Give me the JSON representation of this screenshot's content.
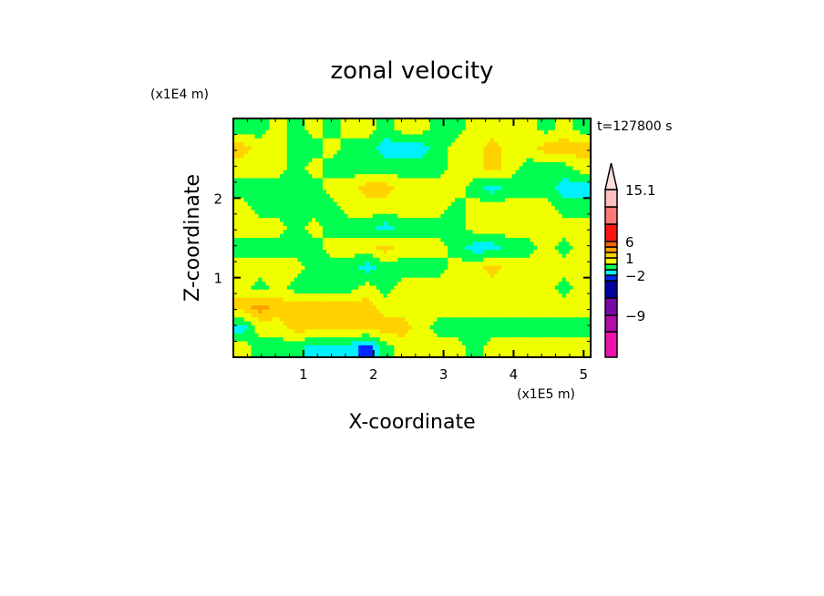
{
  "chart_data": {
    "type": "heatmap",
    "title": "zonal velocity",
    "xlabel": "X-coordinate",
    "ylabel": "Z-coordinate",
    "x_scale_label": "(x1E5 m)",
    "y_scale_label": "(x1E4 m)",
    "time_label": "t=127800 s",
    "xlim": [
      0,
      5.1
    ],
    "ylim": [
      0,
      3.0
    ],
    "x_ticks": [
      1,
      2,
      3,
      4,
      5
    ],
    "x_tick_labels": [
      "1",
      "2",
      "3",
      "4",
      "5"
    ],
    "y_ticks": [
      1,
      2
    ],
    "y_tick_labels": [
      "1",
      "2"
    ],
    "minor_tick_step": 0.2,
    "colorbar": {
      "levels": [
        -15,
        -12,
        -9,
        -6,
        -3,
        -2,
        -1,
        0,
        1,
        2,
        3,
        6,
        9,
        12,
        15.1
      ],
      "colors": [
        "#ec12aa",
        "#b40aa8",
        "#7808a8",
        "#0000a0",
        "#0028ff",
        "#00f0ff",
        "#00ff50",
        "#f0ff00",
        "#ffd200",
        "#ffa000",
        "#ff6400",
        "#ff1414",
        "#ff7878",
        "#ffc0c0"
      ],
      "over_color": "#ffdcdc",
      "labels": [
        {
          "value": 15.1,
          "text": "15.1"
        },
        {
          "value": 6,
          "text": "6"
        },
        {
          "value": 1,
          "text": "1"
        },
        {
          "value": -2,
          "text": "-2"
        },
        {
          "value": -9,
          "text": "-9"
        }
      ]
    },
    "grid_note": "approximate field, rows from top (z=3) to bottom (z=0), cols from x=0 to x=5.1",
    "values": [
      [
        -0.5,
        -0.5,
        0.5,
        -0.5,
        0.5,
        -0.5,
        0.5,
        0.5,
        -0.5,
        0.5,
        0.5,
        -0.5,
        -0.5,
        0.5,
        0.5,
        0.5,
        0.5,
        -0.5,
        0.5,
        -0.5
      ],
      [
        1.5,
        0.5,
        0.5,
        -0.5,
        -0.5,
        0.5,
        -0.5,
        -0.5,
        -1.5,
        -1.5,
        -1.5,
        -0.5,
        0.5,
        0.5,
        1.5,
        0.5,
        0.5,
        1.5,
        1.5,
        1.5
      ],
      [
        0.5,
        0.5,
        0.5,
        -0.5,
        0.5,
        -0.5,
        -0.5,
        -0.5,
        -0.5,
        -0.5,
        -0.5,
        -0.5,
        0.5,
        0.5,
        1.5,
        0.5,
        -0.5,
        -0.5,
        -0.5,
        0.5
      ],
      [
        -0.5,
        -0.5,
        -0.5,
        -0.5,
        -0.5,
        0.5,
        0.5,
        1.5,
        1.5,
        0.5,
        0.5,
        0.5,
        0.5,
        -0.5,
        -1.5,
        -0.5,
        -0.5,
        -0.5,
        -1.5,
        -1.5
      ],
      [
        0.5,
        -0.5,
        -0.5,
        -0.5,
        -0.5,
        -0.5,
        0.5,
        0.5,
        0.5,
        0.5,
        0.5,
        0.5,
        -0.5,
        0.5,
        0.5,
        0.5,
        0.5,
        0.5,
        -0.5,
        -0.5
      ],
      [
        0.5,
        0.5,
        0.5,
        -0.5,
        0.5,
        -0.5,
        -0.5,
        -0.5,
        -1.5,
        -0.5,
        -0.5,
        -0.5,
        -0.5,
        0.5,
        0.5,
        0.5,
        0.5,
        0.5,
        0.5,
        0.5
      ],
      [
        -0.5,
        -0.5,
        -0.5,
        -0.5,
        -0.5,
        0.5,
        0.5,
        0.5,
        1.5,
        0.5,
        0.5,
        0.5,
        -0.5,
        -1.5,
        -1.5,
        -0.5,
        -0.5,
        0.5,
        -0.5,
        0.5
      ],
      [
        0.5,
        0.5,
        0.5,
        0.5,
        -0.5,
        -0.5,
        -0.5,
        -1.5,
        -0.5,
        -0.5,
        -0.5,
        -0.5,
        0.5,
        0.5,
        1.5,
        0.5,
        0.5,
        0.5,
        0.5,
        0.5
      ],
      [
        0.5,
        -0.5,
        0.5,
        -0.5,
        -0.5,
        -0.5,
        -0.5,
        0.5,
        -0.5,
        0.5,
        0.5,
        0.5,
        0.5,
        0.5,
        0.5,
        0.5,
        0.5,
        0.5,
        -0.5,
        0.5
      ],
      [
        1.5,
        2.5,
        1.5,
        1.5,
        1.5,
        1.5,
        1.5,
        1.5,
        0.5,
        0.5,
        0.5,
        0.5,
        0.5,
        0.5,
        0.5,
        0.5,
        0.5,
        0.5,
        0.5,
        0.5
      ],
      [
        -1.5,
        0.5,
        0.5,
        1.5,
        1.5,
        1.5,
        1.5,
        1.5,
        1.5,
        1.5,
        0.5,
        -0.5,
        -0.5,
        -0.5,
        -0.5,
        -0.5,
        -0.5,
        -0.5,
        -0.5,
        -0.5
      ],
      [
        0.5,
        -0.5,
        -0.5,
        -0.5,
        -1.5,
        -1.5,
        -1.5,
        -2.5,
        -0.5,
        0.5,
        0.5,
        0.5,
        0.5,
        -0.5,
        0.5,
        0.5,
        0.5,
        0.5,
        0.5,
        0.5
      ]
    ]
  }
}
